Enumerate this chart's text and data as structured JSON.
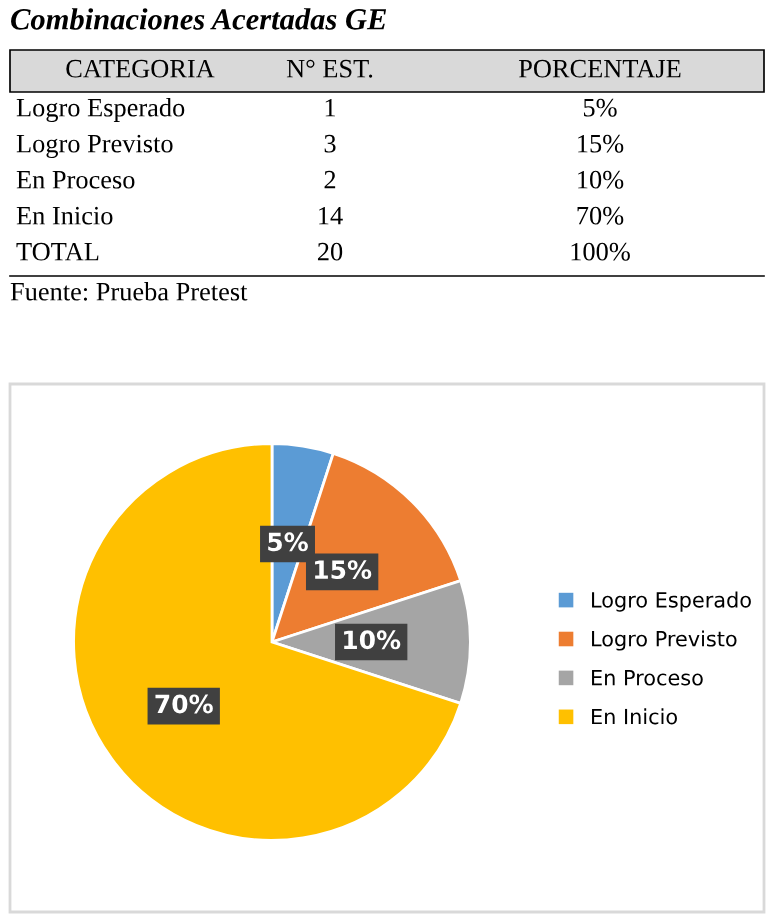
{
  "chart_data": {
    "type": "pie",
    "title": "Combinaciones Acertadas GE",
    "categories": [
      "Logro Esperado",
      "Logro Previsto",
      "En Proceso",
      "En Inicio"
    ],
    "values": [
      5,
      15,
      10,
      70
    ],
    "colors": [
      "#5b9bd5",
      "#ed7d31",
      "#a5a5a5",
      "#ffc000"
    ],
    "value_labels": [
      "5%",
      "15%",
      "10%",
      "70%"
    ],
    "legend": "right",
    "annotations": [
      "CATEGORIA",
      "N° EST.",
      "PORCENTAJE",
      "Logro Esperado",
      "1",
      "5%",
      "Logro Previsto",
      "3",
      "15%",
      "En Proceso",
      "2",
      "10%",
      "En Inicio",
      "14",
      "70%",
      "TOTAL",
      "20",
      "100%",
      "Fuente: Prueba Pretest"
    ]
  }
}
